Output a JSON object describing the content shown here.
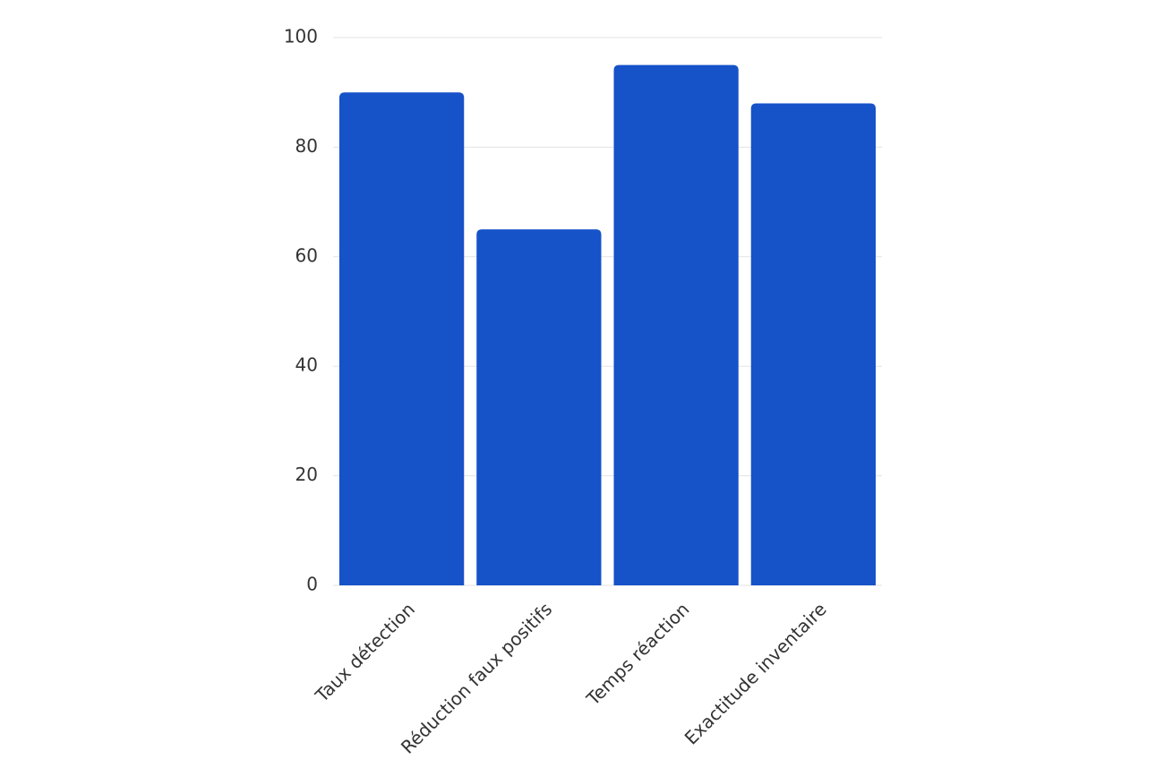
{
  "chart_data": {
    "type": "bar",
    "categories": [
      "Taux détection",
      "Réduction faux positifs",
      "Temps réaction",
      "Exactitude inventaire"
    ],
    "values": [
      90,
      65,
      95,
      88
    ],
    "color": "#1652c8",
    "ylim": [
      0,
      100
    ],
    "yticks": [
      0,
      20,
      40,
      60,
      80,
      100
    ],
    "grid": true
  }
}
